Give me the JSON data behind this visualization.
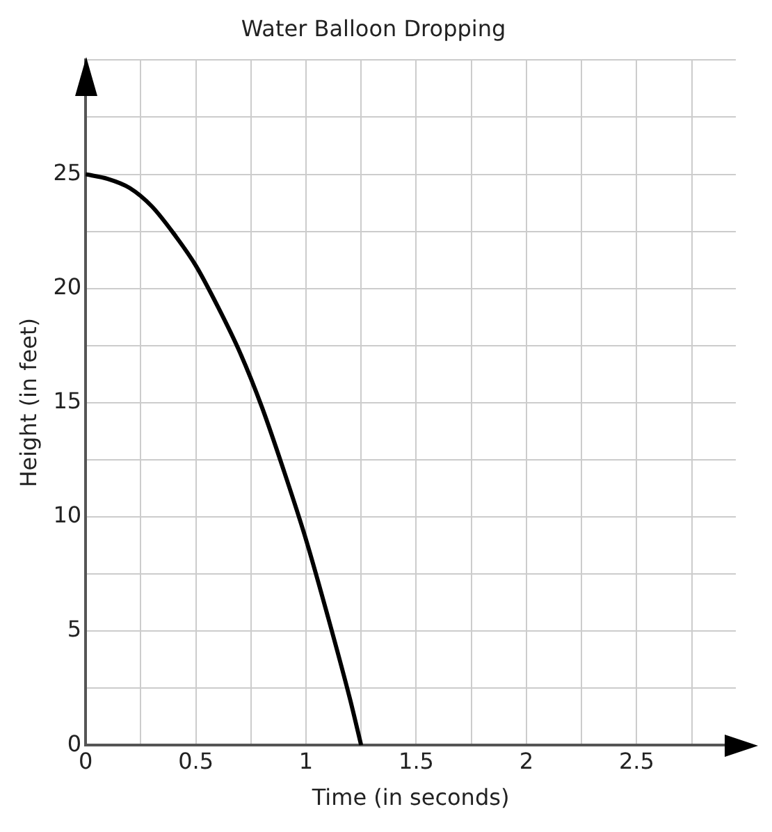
{
  "chart_data": {
    "type": "line",
    "title": "Water Balloon Dropping",
    "xlabel": "Time (in seconds)",
    "ylabel": "Height (in feet)",
    "x": [
      0,
      0.1,
      0.2,
      0.3,
      0.4,
      0.5,
      0.6,
      0.7,
      0.8,
      0.9,
      1,
      1.1,
      1.2,
      1.25
    ],
    "series": [
      {
        "color": "#000000",
        "values": [
          25,
          24.8,
          24.4,
          23.6,
          22.4,
          21,
          19.2,
          17.2,
          14.8,
          12,
          9,
          5.6,
          2,
          0
        ]
      }
    ],
    "xlim": [
      0,
      2.95
    ],
    "ylim": [
      0,
      30
    ],
    "xticks": [
      0,
      {
        "value": 0.25,
        "label": null
      },
      0.5,
      {
        "value": 0.75,
        "label": null
      },
      1,
      {
        "value": 1.25,
        "label": null
      },
      1.5,
      {
        "value": 1.75,
        "label": null
      },
      2,
      {
        "value": 2.25,
        "label": null
      },
      2.5,
      {
        "value": 2.75,
        "label": null
      }
    ],
    "yticks": [
      0,
      {
        "value": 2.5,
        "label": null
      },
      5,
      {
        "value": 7.5,
        "label": null
      },
      10,
      {
        "value": 12.5,
        "label": null
      },
      15,
      {
        "value": 17.5,
        "label": null
      },
      20,
      {
        "value": 22.5,
        "label": null
      },
      25,
      {
        "value": 27.5,
        "label": null
      },
      {
        "value": 30,
        "label": null
      }
    ],
    "grid": true,
    "legend": false,
    "marker": "none",
    "line_style": "solid"
  }
}
